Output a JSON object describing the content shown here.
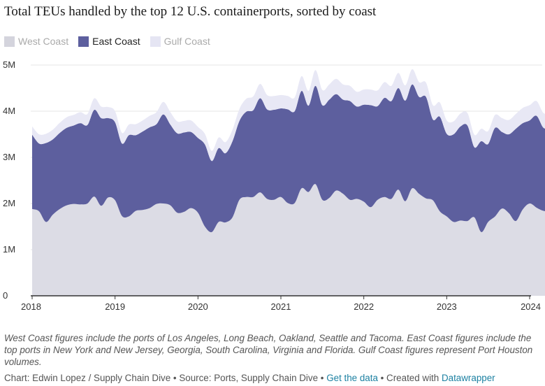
{
  "chart_data": {
    "type": "area",
    "stacked": true,
    "title": "Total TEUs handled by the top 12 U.S. containerports, sorted by coast",
    "y_ticks": [
      "0",
      "1M",
      "2M",
      "3M",
      "4M",
      "5M"
    ],
    "y_tick_values": [
      0,
      1000000,
      2000000,
      3000000,
      4000000,
      5000000
    ],
    "ylim": [
      0,
      5000000
    ],
    "x_ticks": [
      "2018",
      "2019",
      "2020",
      "2021",
      "2022",
      "2023",
      "2024"
    ],
    "x_tick_values": [
      2018,
      2019,
      2020,
      2021,
      2022,
      2023,
      2024
    ],
    "x_start": 2018.0,
    "x_step": 0.0833333,
    "legend": [
      {
        "name": "West Coast",
        "color": "#d4d4dd"
      },
      {
        "name": "East Coast",
        "color": "#5d5f9e"
      },
      {
        "name": "Gulf Coast",
        "color": "#e5e5f3"
      }
    ],
    "series": [
      {
        "name": "West Coast",
        "color": "#dcdce5",
        "values": [
          1880000,
          1830000,
          1600000,
          1760000,
          1880000,
          1960000,
          1990000,
          1980000,
          2000000,
          2150000,
          1950000,
          2130000,
          2070000,
          1730000,
          1720000,
          1840000,
          1860000,
          1900000,
          1990000,
          2000000,
          1960000,
          1800000,
          1820000,
          1900000,
          1800000,
          1500000,
          1380000,
          1600000,
          1590000,
          1700000,
          2080000,
          2140000,
          2140000,
          2240000,
          2100000,
          2080000,
          2140000,
          2010000,
          2010000,
          2330000,
          2250000,
          2420000,
          2080000,
          2120000,
          2280000,
          2210000,
          2080000,
          2100000,
          2040000,
          1920000,
          2080000,
          2140000,
          2100000,
          2300000,
          2050000,
          2330000,
          2210000,
          2110000,
          2070000,
          1830000,
          1720000,
          1600000,
          1630000,
          1620000,
          1700000,
          1380000,
          1600000,
          1720000,
          1890000,
          1790000,
          1620000,
          1870000,
          2000000,
          1910000,
          1840000,
          1830000
        ]
      },
      {
        "name": "East Coast",
        "color": "#5d5f9e",
        "values": [
          1610000,
          1470000,
          1710000,
          1630000,
          1650000,
          1680000,
          1700000,
          1760000,
          1700000,
          1880000,
          1900000,
          1720000,
          1690000,
          1570000,
          1760000,
          1640000,
          1700000,
          1750000,
          1730000,
          1930000,
          1750000,
          1720000,
          1720000,
          1650000,
          1620000,
          1780000,
          1540000,
          1600000,
          1500000,
          1650000,
          1710000,
          1850000,
          1880000,
          2040000,
          1940000,
          1950000,
          1920000,
          2030000,
          1990000,
          2110000,
          1870000,
          2130000,
          2050000,
          2130000,
          2090000,
          2040000,
          2140000,
          2000000,
          2100000,
          2210000,
          2030000,
          2150000,
          2120000,
          2200000,
          2180000,
          2250000,
          2100000,
          2200000,
          1750000,
          2050000,
          1790000,
          1900000,
          2040000,
          2070000,
          1520000,
          1970000,
          1690000,
          1920000,
          1660000,
          1710000,
          2000000,
          1870000,
          1800000,
          1990000,
          1800000,
          1810000
        ]
      },
      {
        "name": "Gulf Coast",
        "color": "#e8e8f5",
        "values": [
          180000,
          200000,
          200000,
          210000,
          220000,
          230000,
          230000,
          240000,
          240000,
          250000,
          250000,
          240000,
          240000,
          230000,
          230000,
          240000,
          240000,
          250000,
          260000,
          270000,
          270000,
          260000,
          250000,
          250000,
          240000,
          230000,
          220000,
          230000,
          240000,
          250000,
          260000,
          280000,
          300000,
          310000,
          310000,
          300000,
          290000,
          290000,
          300000,
          320000,
          320000,
          340000,
          330000,
          330000,
          330000,
          330000,
          330000,
          320000,
          330000,
          340000,
          340000,
          340000,
          330000,
          330000,
          330000,
          330000,
          320000,
          310000,
          310000,
          310000,
          290000,
          280000,
          280000,
          270000,
          270000,
          270000,
          280000,
          280000,
          300000,
          310000,
          320000,
          330000,
          330000,
          320000,
          320000,
          310000
        ]
      }
    ],
    "annotation": "West Coast figures include the ports of Los Angeles, Long Beach, Oakland, Seattle and Tacoma. East Coast figures include the top ports in New York and New Jersey, Georgia, South Carolina, Virginia and Florida. Gulf Coast figures represent Port Houston volumes."
  },
  "credits": {
    "chart_by": "Chart: Edwin Lopez / Supply Chain Dive",
    "sep1": " • ",
    "source": "Source: Ports, Supply Chain Dive",
    "sep2": " • ",
    "data_link": "Get the data",
    "sep3": " • ",
    "created_with": "Created with ",
    "tool": "Datawrapper"
  }
}
